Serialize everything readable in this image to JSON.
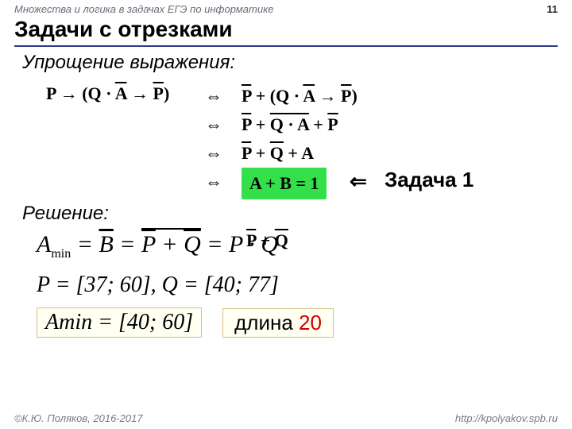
{
  "header": {
    "left": "Множества и логика в задачах ЕГЭ по информатике",
    "page": "11"
  },
  "title": "Задачи с отрезками",
  "subtitle": "Упрощение выражения:",
  "derivation": {
    "lhs_html": "P → (Q · <span class='ov'>A</span> → <span class='ov'>P</span>)",
    "iff_symbol": "⇔",
    "rows": [
      "<span class='ov'>P</span> + (Q · <span class='ov'>A</span> → <span class='ov'>P</span>)",
      "<span class='ov'>P</span> + <span class='ov'>Q · <span class='ov'>A</span></span> + <span class='ov'>P</span>",
      "<span class='ov'>P</span> + <span class='ov'>Q</span> + A",
      "<span class='hlg'>A + B = 1</span>"
    ],
    "big_arrow": "⇐",
    "task_label": "Задача 1"
  },
  "solution": {
    "label": "Решение:",
    "pq_over_html": "<span class='ov'>P</span> + <span class='ov'>Q</span>",
    "amin_html": "<i>A</i><span class='sub'>min</span> = <span class='ov'><i>B</i></span> = <span class='dov'><span class='dov-inner'><i>P</i></span> + <span class='dov-inner'><i>Q</i></span></span> = <i>P</i> · <i>Q</i>",
    "pq_line": "P = [37; 60], Q = [40; 77]",
    "amin_result_html": "<i>A</i><span class='sub'>min</span> = [40; 60]",
    "length_label": "длина ",
    "length_value": "20"
  },
  "footer": {
    "left": "©К.Ю. Поляков, 2016-2017",
    "right": "http://kpolyakov.spb.ru"
  },
  "colors": {
    "rule": "#2a3a8a",
    "highlight": "#33e04a",
    "box_bg": "#fffff2",
    "box_border": "#d4c08a",
    "red": "#d00000"
  }
}
